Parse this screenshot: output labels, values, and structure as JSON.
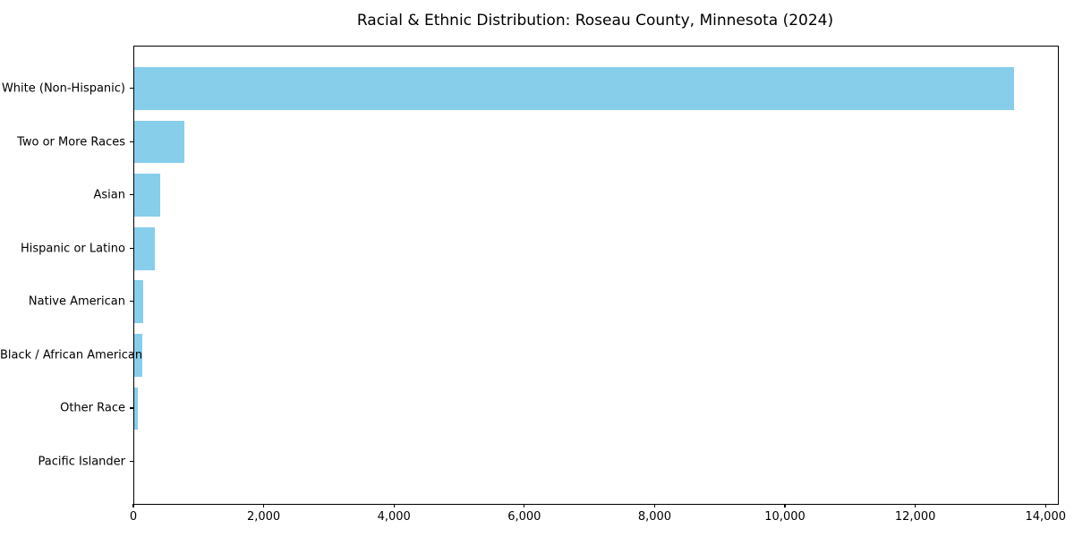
{
  "chart_data": {
    "type": "bar",
    "orientation": "horizontal",
    "title": "Racial & Ethnic Distribution: Roseau County, Minnesota (2024)",
    "categories": [
      "White (Non-Hispanic)",
      "Two or More Races",
      "Asian",
      "Hispanic or Latino",
      "Native American",
      "Black / African American",
      "Other Race",
      "Pacific Islander"
    ],
    "values": [
      13500,
      765,
      400,
      310,
      140,
      125,
      55,
      0
    ],
    "xlabel": "",
    "ylabel": "",
    "xlim": [
      0,
      14175
    ],
    "xticks": [
      0,
      2000,
      4000,
      6000,
      8000,
      10000,
      12000,
      14000
    ],
    "xtick_labels": [
      "0",
      "2,000",
      "4,000",
      "6,000",
      "8,000",
      "10,000",
      "12,000",
      "14,000"
    ],
    "bar_color": "#87CEEB",
    "grid": false,
    "legend": null
  }
}
